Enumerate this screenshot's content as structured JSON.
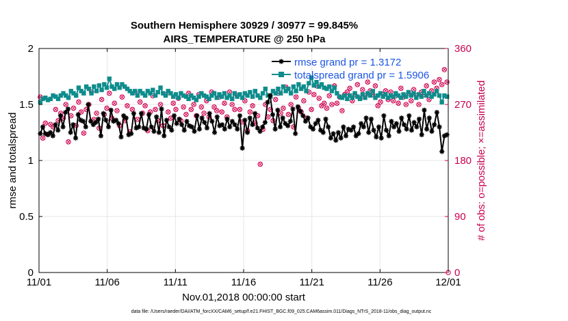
{
  "chart_data": {
    "type": "line",
    "title": "Southern Hemisphere 30929 / 30977 = 99.845%",
    "subtitle": "AIRS_TEMPERATURE @ 250 hPa",
    "xlabel": "Nov.01,2018 00:00:00 start",
    "ylabel": "rmse and totalspread",
    "y2label": "# of obs: o=possible; ×=assimilated",
    "xlim": [
      0,
      30
    ],
    "ylim": [
      0,
      2
    ],
    "y2lim": [
      0,
      360
    ],
    "x_tick_labels": [
      "11/01",
      "11/06",
      "11/11",
      "11/16",
      "11/21",
      "11/26",
      "12/01"
    ],
    "x_tick_values": [
      0,
      5,
      10,
      15,
      20,
      25,
      30
    ],
    "y_tick_labels": [
      "0",
      "0.5",
      "1",
      "1.5",
      "2"
    ],
    "y_tick_values": [
      0,
      0.5,
      1,
      1.5,
      2
    ],
    "y2_tick_labels": [
      "0",
      "90",
      "180",
      "270",
      "360"
    ],
    "y2_tick_values": [
      0,
      90,
      180,
      270,
      360
    ],
    "grid": true,
    "legend_position": "top-right",
    "colors": {
      "rmse": "#000000",
      "spread": "#0f8c8c",
      "obs": "#d4105a",
      "legend_text": "#1a55e6"
    },
    "series": [
      {
        "name": "rmse grand pr = 1.3172",
        "color": "#000000",
        "marker": "asterisk",
        "values": [
          1.24,
          1.3,
          1.24,
          1.23,
          1.25,
          1.22,
          1.32,
          1.27,
          1.4,
          1.3,
          1.43,
          1.46,
          1.25,
          1.32,
          1.2,
          1.41,
          1.36,
          1.35,
          1.3,
          1.5,
          1.35,
          1.32,
          1.34,
          1.37,
          1.22,
          1.42,
          1.36,
          1.3,
          1.45,
          1.35,
          1.36,
          1.33,
          1.21,
          1.4,
          1.38,
          1.23,
          1.24,
          1.42,
          1.29,
          1.3,
          1.42,
          1.29,
          1.28,
          1.41,
          1.3,
          1.26,
          1.39,
          1.25,
          1.46,
          1.22,
          1.36,
          1.3,
          1.27,
          1.4,
          1.33,
          1.37,
          1.32,
          1.27,
          1.35,
          1.31,
          1.3,
          1.26,
          1.4,
          1.28,
          1.38,
          1.34,
          1.29,
          1.42,
          1.35,
          1.25,
          1.39,
          1.31,
          1.32,
          1.28,
          1.37,
          1.3,
          1.35,
          1.32,
          1.28,
          1.4,
          1.11,
          1.36,
          1.25,
          1.38,
          1.32,
          1.42,
          1.29,
          1.26,
          1.3,
          1.34,
          1.52,
          1.58,
          1.41,
          1.28,
          1.45,
          1.3,
          1.38,
          1.33,
          1.31,
          1.35,
          1.46,
          1.24,
          1.48,
          1.44,
          1.4,
          1.35,
          1.38,
          1.3,
          1.28,
          1.33,
          1.36,
          1.27,
          1.25,
          1.37,
          1.3,
          1.2,
          1.24,
          1.18,
          1.25,
          1.2,
          1.3,
          1.22,
          1.28,
          1.27,
          1.3,
          1.22,
          1.24,
          1.33,
          1.3,
          1.38,
          1.25,
          1.37,
          1.27,
          1.21,
          1.3,
          1.2,
          1.4,
          1.27,
          1.22,
          1.35,
          1.3,
          1.33,
          1.26,
          1.38,
          1.32,
          1.28,
          1.4,
          1.27,
          1.34,
          1.3,
          1.37,
          1.23,
          1.45,
          1.28,
          1.38,
          1.26,
          1.32,
          1.43,
          1.3,
          1.08,
          1.22,
          1.23
        ]
      },
      {
        "name": "totalspread grand pr = 1.5906",
        "color": "#0f8c8c",
        "marker": "square",
        "values": [
          1.52,
          1.55,
          1.56,
          1.54,
          1.55,
          1.58,
          1.57,
          1.55,
          1.58,
          1.6,
          1.58,
          1.56,
          1.62,
          1.6,
          1.58,
          1.65,
          1.62,
          1.6,
          1.66,
          1.64,
          1.6,
          1.66,
          1.62,
          1.67,
          1.63,
          1.68,
          1.65,
          1.73,
          1.66,
          1.64,
          1.68,
          1.65,
          1.68,
          1.66,
          1.64,
          1.62,
          1.6,
          1.62,
          1.58,
          1.62,
          1.6,
          1.58,
          1.62,
          1.6,
          1.63,
          1.58,
          1.61,
          1.65,
          1.6,
          1.58,
          1.62,
          1.6,
          1.57,
          1.59,
          1.56,
          1.6,
          1.58,
          1.57,
          1.55,
          1.58,
          1.56,
          1.54,
          1.57,
          1.6,
          1.58,
          1.57,
          1.55,
          1.58,
          1.6,
          1.56,
          1.59,
          1.57,
          1.6,
          1.56,
          1.58,
          1.55,
          1.6,
          1.57,
          1.59,
          1.56,
          1.6,
          1.58,
          1.61,
          1.57,
          1.62,
          1.58,
          1.56,
          1.6,
          1.64,
          1.58,
          1.57,
          1.62,
          1.6,
          1.64,
          1.6,
          1.66,
          1.62,
          1.64,
          1.6,
          1.66,
          1.62,
          1.68,
          1.64,
          1.66,
          1.62,
          1.69,
          1.74,
          1.67,
          1.7,
          1.66,
          1.68,
          1.65,
          1.64,
          1.66,
          1.62,
          1.65,
          1.6,
          1.57,
          1.56,
          1.58,
          1.55,
          1.58,
          1.56,
          1.6,
          1.57,
          1.55,
          1.59,
          1.56,
          1.6,
          1.58,
          1.62,
          1.56,
          1.58,
          1.6,
          1.57,
          1.59,
          1.56,
          1.58,
          1.57,
          1.6,
          1.58,
          1.56,
          1.59,
          1.57,
          1.61,
          1.58,
          1.6,
          1.56,
          1.59,
          1.57,
          1.62,
          1.58,
          1.6,
          1.57,
          1.59,
          1.62,
          1.58,
          1.52,
          1.58,
          1.57
        ]
      },
      {
        "name": "# of obs possible",
        "color": "#d4105a",
        "marker": "circle",
        "axis": "right",
        "values": [
          282,
          216,
          240,
          222,
          238,
          234,
          262,
          244,
          256,
          248,
          270,
          210,
          252,
          264,
          236,
          274,
          258,
          224,
          262,
          270,
          290,
          246,
          256,
          232,
          278,
          254,
          264,
          288,
          248,
          272,
          260,
          236,
          282,
          244,
          268,
          226,
          262,
          290,
          246,
          274,
          256,
          268,
          228,
          258,
          284,
          262,
          244,
          270,
          236,
          286,
          258,
          248,
          272,
          262,
          280,
          244,
          266,
          254,
          288,
          262,
          270,
          252,
          286,
          266,
          256,
          276,
          250,
          290,
          266,
          260,
          282,
          258,
          272,
          250,
          290,
          270,
          262,
          284,
          262,
          242,
          276,
          228,
          258,
          268,
          240,
          252,
          174,
          230,
          270,
          250,
          262,
          244,
          278,
          288,
          256,
          264,
          298,
          254,
          270,
          234,
          282,
          264,
          258,
          276,
          248,
          290,
          262,
          286,
          300,
          280,
          268,
          272,
          264,
          284,
          270,
          300,
          272,
          282,
          260,
          286,
          290,
          296,
          276,
          286,
          302,
          280,
          294,
          284,
          306,
          292,
          286,
          300,
          268,
          274,
          286,
          292,
          278,
          290,
          276,
          284,
          272,
          296,
          282,
          270,
          288,
          276,
          294,
          284,
          270,
          290,
          286,
          300,
          278,
          292,
          306,
          296,
          310,
          302,
          326,
          306
        ]
      }
    ]
  },
  "footer": "data file: /Users/raeder/DAI/ATM_forcXX/CAM6_setup/f.e21.FHIST_BGC.f09_025.CAM6assim.011/Diags_NTrS_2018-11/obs_diag_output.nc"
}
